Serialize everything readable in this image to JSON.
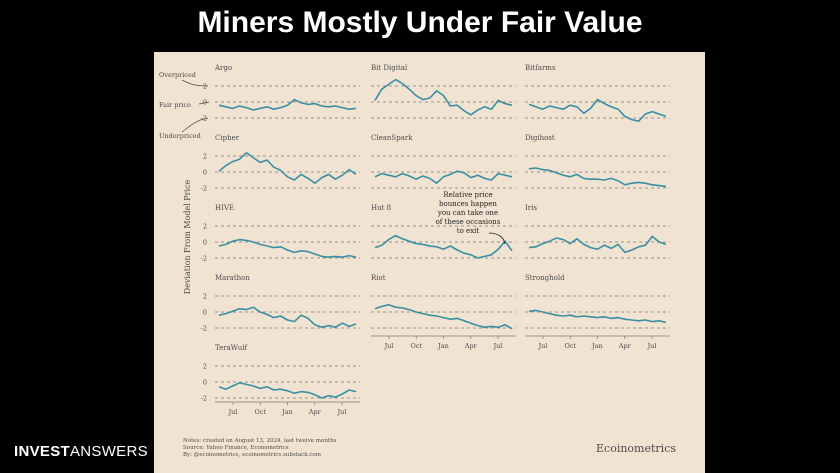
{
  "slide": {
    "title": "Miners Mostly Under Fair Value",
    "brand_bold": "INVEST",
    "brand_light": "ANSWERS"
  },
  "colors": {
    "background": "#000000",
    "panel": "#f1e3d2",
    "line": "#3a8fa3",
    "dashed": "#7a7a7a",
    "text": "#4a4a4a"
  },
  "figure": {
    "ylabel": "Deviation From Model Price",
    "annotations": {
      "overpriced": "Overpriced",
      "fair_price": "Fair price",
      "underpriced": "Underpriced",
      "callout": [
        "Relative price",
        "bounces happen",
        "you can take one",
        "of these occasions",
        "to exit"
      ]
    },
    "notes": [
      "Notes: created on August 13, 2024, last twelve months",
      "Source: Yahoo Finance, Econometrics",
      "By: @ecoinometrics, ecoinometrics.substack.com"
    ],
    "logo": "Ecoinometrics"
  },
  "chart_data": {
    "type": "line",
    "layout": "small-multiples",
    "y_ticks": [
      "2",
      "0",
      "-2"
    ],
    "ylim": [
      -3,
      3
    ],
    "x_ticks": [
      "Jul",
      "Oct",
      "Jan",
      "Apr",
      "Jul"
    ],
    "x_tick_positions": [
      0.0,
      0.25,
      0.5,
      0.75,
      1.0
    ],
    "series": [
      {
        "name": "Argo",
        "values": [
          -0.4,
          -0.6,
          -0.8,
          -0.5,
          -0.7,
          -1.0,
          -0.8,
          -0.6,
          -0.9,
          -0.7,
          -0.4,
          0.3,
          -0.1,
          -0.3,
          -0.2,
          -0.5,
          -0.6,
          -0.5,
          -0.7,
          -0.9,
          -0.8
        ]
      },
      {
        "name": "Bit Digital",
        "values": [
          0.2,
          1.6,
          2.2,
          2.8,
          2.3,
          1.6,
          0.8,
          0.3,
          0.5,
          1.4,
          0.8,
          -0.5,
          -0.4,
          -1.1,
          -1.6,
          -1.0,
          -0.6,
          -0.9,
          0.2,
          -0.2,
          -0.4
        ]
      },
      {
        "name": "Bitfarms",
        "values": [
          -0.3,
          -0.6,
          -0.9,
          -0.5,
          -0.7,
          -0.9,
          -0.4,
          -0.6,
          -1.4,
          -0.8,
          0.3,
          -0.2,
          -0.6,
          -0.9,
          -1.8,
          -2.2,
          -2.4,
          -1.5,
          -1.2,
          -1.5,
          -1.8
        ]
      },
      {
        "name": "Cipher",
        "values": [
          0.1,
          0.8,
          1.3,
          1.6,
          2.4,
          1.8,
          1.2,
          1.5,
          0.6,
          0.2,
          -0.6,
          -1.0,
          -0.3,
          -0.8,
          -1.4,
          -0.7,
          -0.3,
          -0.9,
          -0.4,
          0.3,
          -0.3
        ]
      },
      {
        "name": "CleanSpark",
        "values": [
          -0.6,
          -0.2,
          -0.4,
          -0.6,
          -0.2,
          -0.5,
          -0.9,
          -0.5,
          -0.8,
          -1.4,
          -0.6,
          -0.3,
          0.1,
          -0.1,
          -0.7,
          -0.4,
          -0.8,
          -1.0,
          -0.2,
          -0.4,
          -0.6
        ]
      },
      {
        "name": "Digihost",
        "values": [
          0.4,
          0.5,
          0.3,
          0.2,
          -0.1,
          -0.4,
          -0.6,
          -0.3,
          -0.8,
          -0.9,
          -0.9,
          -1.0,
          -0.8,
          -1.1,
          -1.6,
          -1.4,
          -1.3,
          -1.4,
          -1.6,
          -1.7,
          -1.8
        ]
      },
      {
        "name": "HIVE",
        "values": [
          -0.5,
          -0.3,
          0.1,
          0.3,
          0.2,
          0.0,
          -0.3,
          -0.5,
          -0.7,
          -0.6,
          -1.0,
          -1.3,
          -1.1,
          -1.2,
          -1.5,
          -1.8,
          -1.9,
          -1.8,
          -1.9,
          -1.7,
          -1.9
        ]
      },
      {
        "name": "Hut 8",
        "values": [
          -0.7,
          -0.4,
          0.3,
          0.8,
          0.4,
          0.1,
          -0.2,
          -0.3,
          -0.5,
          -0.6,
          -0.9,
          -0.5,
          -1.0,
          -1.4,
          -1.6,
          -2.0,
          -1.8,
          -1.6,
          -0.9,
          0.1,
          -1.1
        ]
      },
      {
        "name": "Iris",
        "values": [
          -0.7,
          -0.6,
          -0.2,
          0.1,
          0.5,
          0.3,
          -0.2,
          0.4,
          -0.3,
          -0.7,
          -0.9,
          -0.4,
          -0.8,
          -0.3,
          -1.3,
          -1.0,
          -0.6,
          -0.4,
          0.7,
          0.0,
          -0.3
        ]
      },
      {
        "name": "Marathon",
        "values": [
          -0.4,
          -0.2,
          0.1,
          0.4,
          0.3,
          0.6,
          0.0,
          -0.3,
          -0.7,
          -0.5,
          -1.0,
          -1.2,
          -0.4,
          -0.8,
          -1.6,
          -1.9,
          -1.7,
          -1.9,
          -1.4,
          -1.8,
          -1.5
        ]
      },
      {
        "name": "Riot",
        "values": [
          0.4,
          0.7,
          0.9,
          0.6,
          0.5,
          0.3,
          0.0,
          -0.2,
          -0.4,
          -0.5,
          -0.7,
          -0.9,
          -0.8,
          -1.1,
          -1.4,
          -1.7,
          -1.9,
          -1.8,
          -1.9,
          -1.6,
          -2.1
        ]
      },
      {
        "name": "Stronghold",
        "values": [
          0.1,
          0.2,
          0.0,
          -0.2,
          -0.4,
          -0.5,
          -0.4,
          -0.6,
          -0.5,
          -0.6,
          -0.7,
          -0.6,
          -0.8,
          -0.7,
          -0.9,
          -1.0,
          -1.1,
          -1.0,
          -1.2,
          -1.1,
          -1.3
        ]
      },
      {
        "name": "TeraWulf",
        "values": [
          -0.6,
          -0.9,
          -0.5,
          -0.1,
          -0.3,
          -0.5,
          -0.8,
          -0.6,
          -1.0,
          -0.9,
          -1.1,
          -1.4,
          -1.2,
          -1.3,
          -1.6,
          -2.0,
          -1.7,
          -1.9,
          -1.5,
          -1.0,
          -1.2
        ]
      }
    ]
  }
}
